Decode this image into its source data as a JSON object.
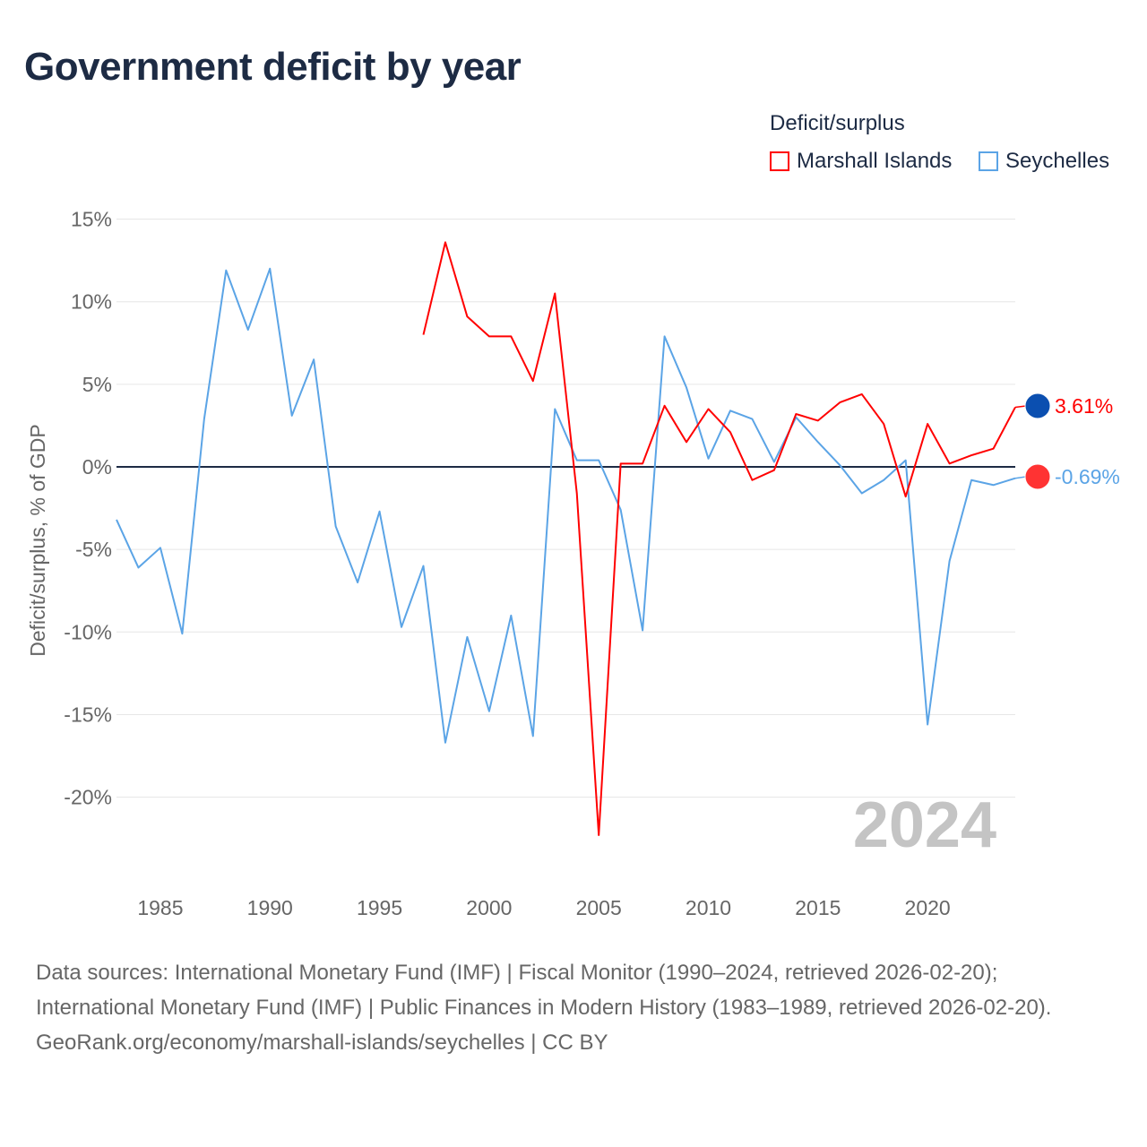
{
  "title": "Government deficit by year",
  "chart_data": {
    "type": "line",
    "title": "Government deficit by year",
    "ylabel": "Deficit/surplus, % of GDP",
    "xlabel": "",
    "ylim": [
      -25,
      15
    ],
    "xlim": [
      1983,
      2024
    ],
    "yticks": [
      15,
      10,
      5,
      0,
      -5,
      -10,
      -15,
      -20
    ],
    "ytick_labels": [
      "15%",
      "10%",
      "5%",
      "0%",
      "-5%",
      "-10%",
      "-15%",
      "-20%"
    ],
    "xticks": [
      1985,
      1990,
      1995,
      2000,
      2005,
      2010,
      2015,
      2020
    ],
    "xtick_labels": [
      "1985",
      "1990",
      "1995",
      "2000",
      "2005",
      "2010",
      "2015",
      "2020"
    ],
    "grid": true,
    "legend_title": "Deficit/surplus",
    "legend_position": "top-right",
    "year_watermark": "2024",
    "series": [
      {
        "name": "Marshall Islands",
        "color": "#ff0000",
        "end_label": "3.61%",
        "x": [
          1997,
          1998,
          1999,
          2000,
          2001,
          2002,
          2003,
          2004,
          2005,
          2006,
          2007,
          2008,
          2009,
          2010,
          2011,
          2012,
          2013,
          2014,
          2015,
          2016,
          2017,
          2018,
          2019,
          2020,
          2021,
          2022,
          2023,
          2024
        ],
        "values": [
          8.0,
          13.6,
          9.1,
          7.9,
          7.9,
          5.2,
          10.5,
          -1.6,
          -22.3,
          0.2,
          0.2,
          3.7,
          1.5,
          3.5,
          2.1,
          -0.8,
          -0.2,
          3.2,
          2.8,
          3.9,
          4.4,
          2.6,
          -1.8,
          2.6,
          0.2,
          0.7,
          1.1,
          3.61
        ]
      },
      {
        "name": "Seychelles",
        "color": "#5ba4e6",
        "end_label": "-0.69%",
        "x": [
          1983,
          1984,
          1985,
          1986,
          1987,
          1988,
          1989,
          1990,
          1991,
          1992,
          1993,
          1994,
          1995,
          1996,
          1997,
          1998,
          1999,
          2000,
          2001,
          2002,
          2003,
          2004,
          2005,
          2006,
          2007,
          2008,
          2009,
          2010,
          2011,
          2012,
          2013,
          2014,
          2015,
          2016,
          2017,
          2018,
          2019,
          2020,
          2021,
          2022,
          2023,
          2024
        ],
        "values": [
          -3.2,
          -6.1,
          -4.9,
          -10.1,
          2.9,
          11.9,
          8.3,
          12.0,
          3.1,
          6.5,
          -3.6,
          -7.0,
          -2.7,
          -9.7,
          -6.0,
          -16.7,
          -10.3,
          -14.8,
          -9.0,
          -16.3,
          3.5,
          0.4,
          0.4,
          -2.6,
          -9.9,
          7.9,
          4.8,
          0.5,
          3.4,
          2.9,
          0.3,
          3.0,
          1.5,
          0.1,
          -1.6,
          -0.8,
          0.4,
          -15.6,
          -5.7,
          -0.8,
          -1.1,
          -0.69
        ]
      }
    ]
  },
  "sources": {
    "line1": "Data sources: International Monetary Fund (IMF) | Fiscal Monitor (1990–2024, retrieved 2026-02-20); International Monetary Fund (IMF) | Public Finances in Modern History (1983–1989, retrieved 2026-02-20).",
    "line2": "GeoRank.org/economy/marshall-islands/seychelles | CC BY"
  }
}
